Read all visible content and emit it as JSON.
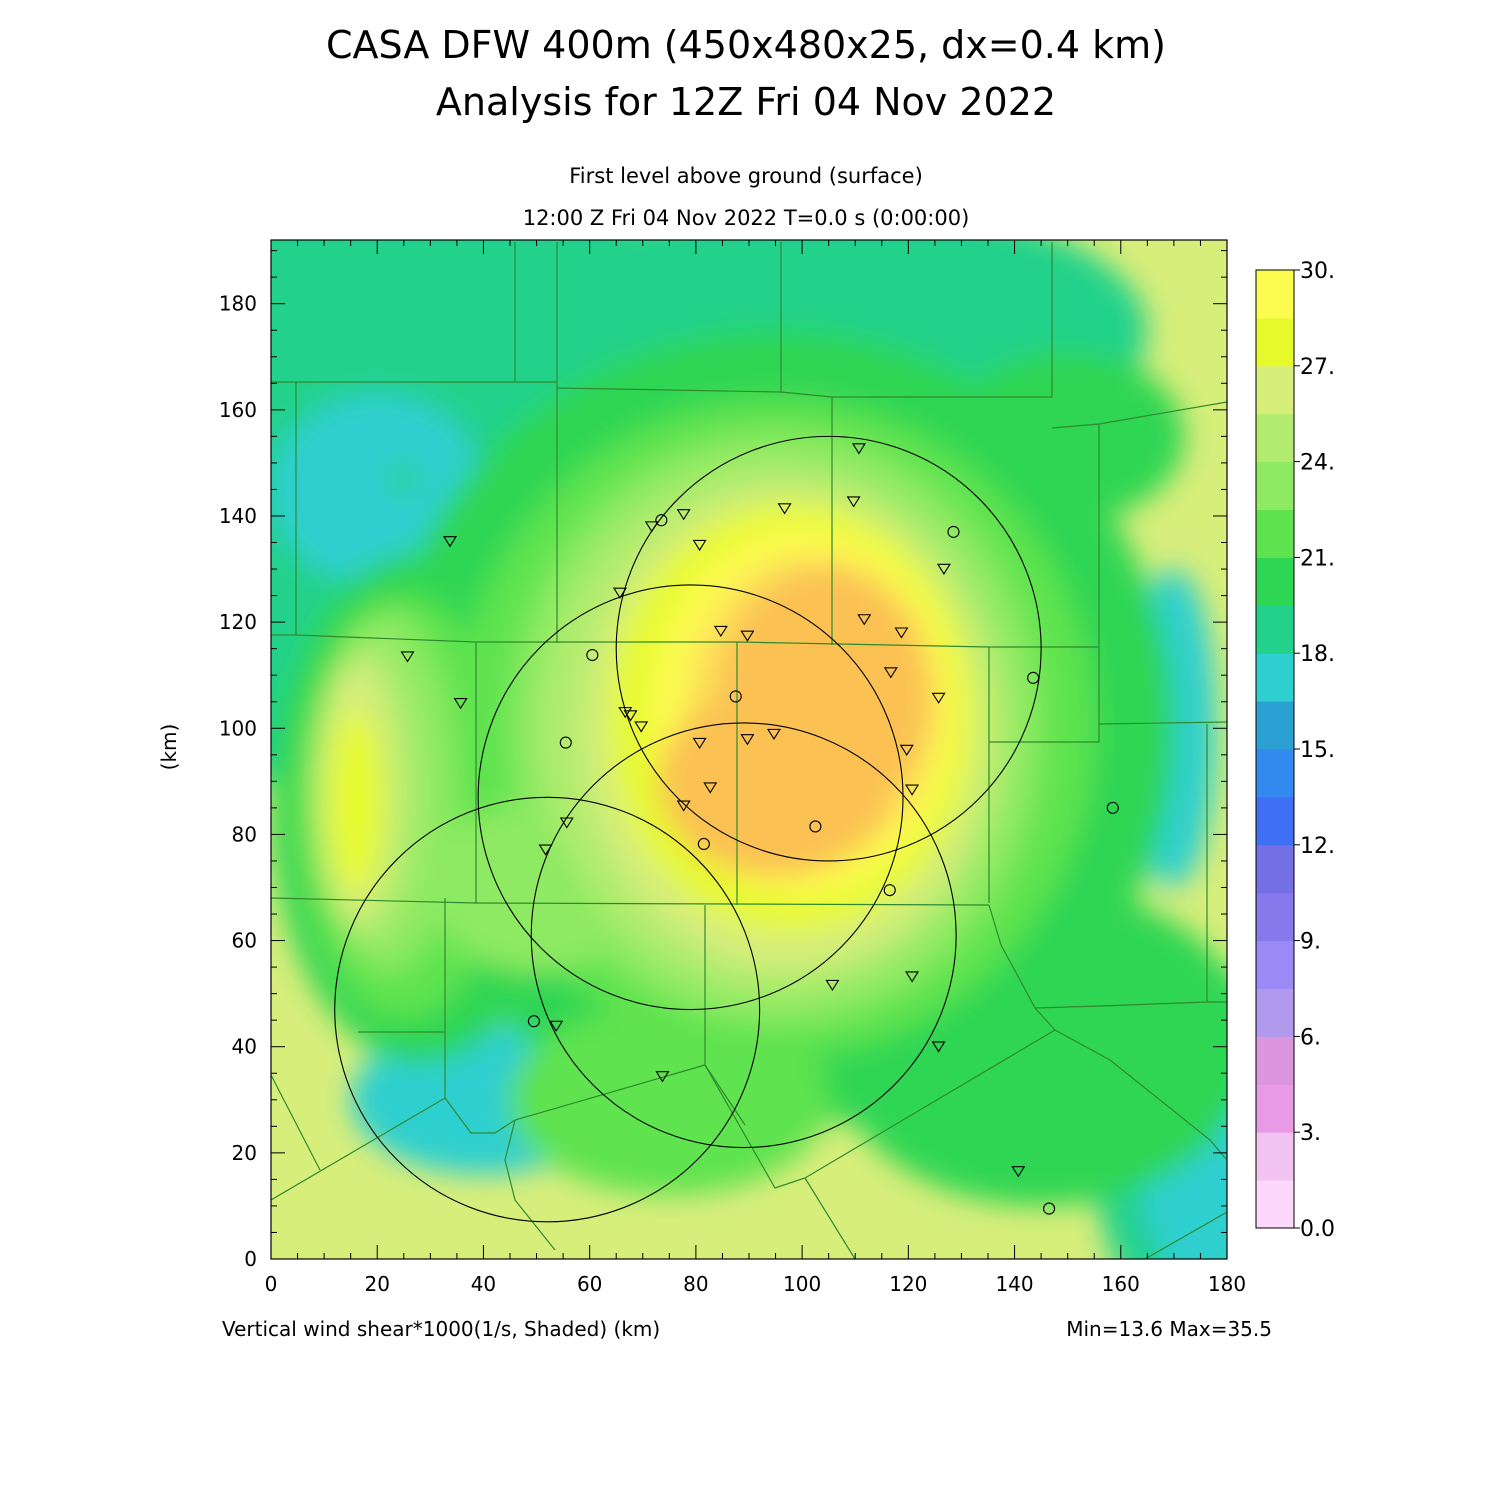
{
  "title_line1": "CASA DFW 400m (450x480x25, dx=0.4 km)",
  "title_line2": "Analysis for 12Z Fri 04 Nov 2022",
  "subtitle_line1": "First level above ground (surface)",
  "subtitle_line2": "12:00 Z Fri 04 Nov 2022   T=0.0 s (0:00:00)",
  "footer_left": "Vertical wind shear*1000(1/s, Shaded)  (km)",
  "footer_right": "Min=13.6 Max=35.5",
  "chart_data": {
    "type": "heatmap",
    "title": "CASA DFW 400m (450x480x25, dx=0.4 km)",
    "xlabel": "",
    "ylabel": "(km)",
    "xlim": [
      0,
      180
    ],
    "ylim": [
      0,
      192
    ],
    "x_ticks": [
      0,
      20,
      40,
      60,
      80,
      100,
      120,
      140,
      160,
      180
    ],
    "y_ticks": [
      0,
      20,
      40,
      60,
      80,
      100,
      120,
      140,
      160,
      180
    ],
    "field_min": 13.6,
    "field_max": 35.5,
    "colorbar": {
      "levels": [
        0,
        1.5,
        3,
        4.5,
        6,
        7.5,
        9,
        10.5,
        12,
        13.5,
        15,
        16.5,
        18,
        19.5,
        21,
        22.5,
        24,
        25.5,
        27,
        28.5,
        30
      ],
      "labels": [
        "0.0",
        "3.",
        "6.",
        "9.",
        "12.",
        "15.",
        "18.",
        "21.",
        "24.",
        "27.",
        "30."
      ],
      "label_values": [
        0,
        3,
        6,
        9,
        12,
        15,
        18,
        21,
        24,
        27,
        30
      ],
      "colors": [
        "#fcd9fc",
        "#f2c2f0",
        "#e99ae6",
        "#dc96e0",
        "#b19aee",
        "#9b8af5",
        "#8878ec",
        "#7470e4",
        "#3e6ff4",
        "#3289ee",
        "#2ba0d2",
        "#2dcfcf",
        "#22d28a",
        "#2fd653",
        "#5ee34f",
        "#8eea62",
        "#b2ec6e",
        "#d8ee7b",
        "#e6fa2b",
        "#fbfb50",
        "#fde15a",
        "#fbc153",
        "#f9a34b",
        "#f78747",
        "#f66d45",
        "#f94636",
        "#fb5073",
        "#fb5890",
        "#ff73b3",
        "#ff8fd8",
        "#ffffff"
      ]
    },
    "radars": [
      {
        "cx": 105,
        "cy": 115,
        "r": 40
      },
      {
        "cx": 79,
        "cy": 87,
        "r": 40
      },
      {
        "cx": 89,
        "cy": 61,
        "r": 40
      },
      {
        "cx": 52,
        "cy": 47,
        "r": 40
      }
    ],
    "stations_triangle": [
      [
        33.7,
        135.3
      ],
      [
        25.7,
        113.6
      ],
      [
        35.7,
        104.8
      ],
      [
        65.7,
        125.6
      ],
      [
        71.7,
        138.1
      ],
      [
        77.7,
        140.4
      ],
      [
        80.7,
        134.6
      ],
      [
        96.7,
        141.5
      ],
      [
        109.7,
        142.8
      ],
      [
        110.7,
        152.8
      ],
      [
        126.7,
        130.1
      ],
      [
        111.7,
        120.6
      ],
      [
        118.7,
        118.1
      ],
      [
        116.7,
        110.6
      ],
      [
        125.7,
        105.8
      ],
      [
        84.7,
        118.4
      ],
      [
        89.7,
        117.5
      ],
      [
        66.7,
        103.1
      ],
      [
        67.7,
        102.5
      ],
      [
        69.7,
        100.4
      ],
      [
        80.7,
        97.3
      ],
      [
        89.7,
        98.0
      ],
      [
        94.7,
        99.0
      ],
      [
        119.7,
        96.0
      ],
      [
        120.7,
        88.5
      ],
      [
        82.7,
        88.9
      ],
      [
        77.7,
        85.5
      ],
      [
        55.7,
        82.3
      ],
      [
        51.7,
        77.2
      ],
      [
        105.7,
        51.7
      ],
      [
        120.7,
        53.3
      ],
      [
        53.7,
        44.0
      ],
      [
        73.7,
        34.5
      ],
      [
        125.7,
        40.1
      ],
      [
        140.7,
        16.6
      ]
    ],
    "stations_circle": [
      [
        73.5,
        139.2
      ],
      [
        128.5,
        137.0
      ],
      [
        60.5,
        113.8
      ],
      [
        143.5,
        109.5
      ],
      [
        87.5,
        106.0
      ],
      [
        55.5,
        97.3
      ],
      [
        158.5,
        85.0
      ],
      [
        102.5,
        81.5
      ],
      [
        81.5,
        78.2
      ],
      [
        116.5,
        69.5
      ],
      [
        49.5,
        44.8
      ],
      [
        146.5,
        9.5
      ]
    ]
  }
}
